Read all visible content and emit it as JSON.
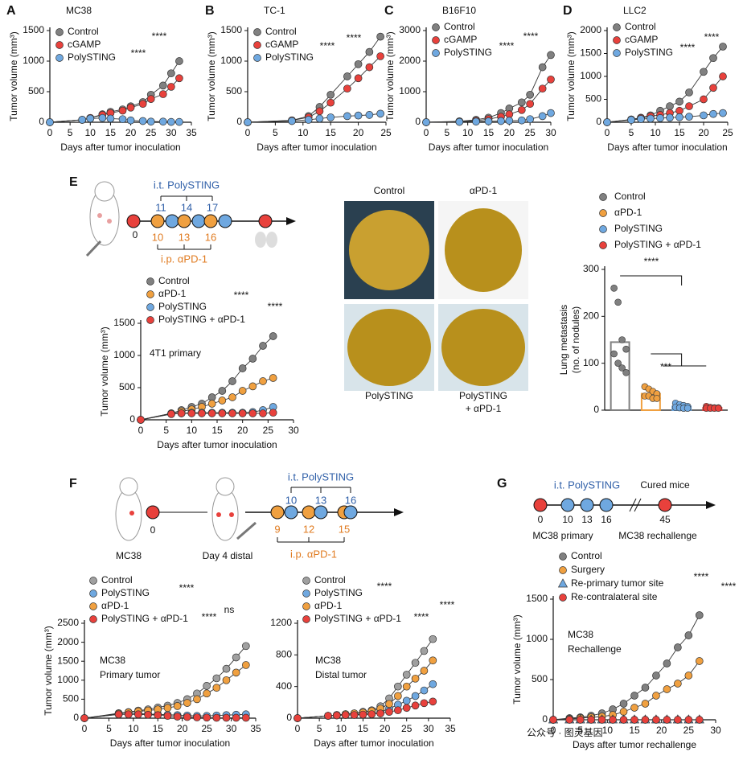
{
  "panels": [
    "A",
    "B",
    "C",
    "D",
    "E",
    "F",
    "G"
  ],
  "schemes": {
    "E": {
      "top_label": "i.t. PolySTING",
      "days_top": [
        11,
        14,
        17
      ],
      "start": "0",
      "days_bottom": [
        10,
        13,
        16
      ],
      "bottom_label": "i.p. αPD-1"
    },
    "F": {
      "top_label": "i.t. PolySTING",
      "days_top": [
        10,
        13,
        16
      ],
      "start": "0",
      "days_bottom": [
        9,
        12,
        15
      ],
      "bottom_label": "i.p. αPD-1",
      "mouse_labels": [
        "MC38",
        "Day 4 distal"
      ]
    },
    "G": {
      "top_label": "i.t. PolySTING",
      "right_label": "Cured mice",
      "days": [
        0,
        10,
        13,
        16,
        45
      ],
      "bottom_labels": [
        "MC38 primary",
        "MC38 rechallenge"
      ]
    }
  },
  "photos": {
    "labels": [
      "Control",
      "αPD-1",
      "PolySTING",
      "PolySTING",
      "+ αPD-1"
    ]
  },
  "watermark": "公众号 · 图灵基因",
  "chart_data": [
    {
      "type": "line",
      "title": "MC38",
      "xlabel": "Days after tumor inoculation",
      "ylabel": "Tumor volume (mm³)",
      "x": [
        0,
        8,
        10,
        13,
        15,
        18,
        20,
        23,
        25,
        28,
        30,
        32
      ],
      "xlim": [
        0,
        35
      ],
      "xticks": [
        0,
        5,
        10,
        15,
        20,
        25,
        30,
        35
      ],
      "ylim": [
        0,
        1500
      ],
      "yticks": [
        0,
        500,
        1000,
        1500
      ],
      "series": [
        {
          "name": "Control",
          "color": "#808080",
          "values": [
            0,
            40,
            70,
            130,
            170,
            210,
            260,
            330,
            450,
            600,
            800,
            1000
          ]
        },
        {
          "name": "cGAMP",
          "color": "#e8413c",
          "values": [
            0,
            40,
            70,
            120,
            150,
            190,
            240,
            300,
            380,
            460,
            580,
            720
          ]
        },
        {
          "name": "PolySTING",
          "color": "#6fa8e0",
          "values": [
            0,
            40,
            60,
            70,
            60,
            50,
            30,
            20,
            10,
            10,
            5,
            5
          ]
        }
      ],
      "annotations": [
        "****",
        "****"
      ]
    },
    {
      "type": "line",
      "title": "TC-1",
      "xlabel": "Days after tumor inoculation",
      "ylabel": "Tumor volume (mm³)",
      "x": [
        0,
        8,
        11,
        13,
        15,
        18,
        20,
        22,
        24
      ],
      "xlim": [
        0,
        25
      ],
      "xticks": [
        0,
        5,
        10,
        15,
        20,
        25
      ],
      "ylim": [
        0,
        1500
      ],
      "yticks": [
        0,
        500,
        1000,
        1500
      ],
      "series": [
        {
          "name": "Control",
          "color": "#808080",
          "values": [
            0,
            30,
            100,
            250,
            450,
            750,
            950,
            1150,
            1400
          ]
        },
        {
          "name": "cGAMP",
          "color": "#e8413c",
          "values": [
            0,
            30,
            80,
            180,
            320,
            550,
            720,
            900,
            1080
          ]
        },
        {
          "name": "PolySTING",
          "color": "#6fa8e0",
          "values": [
            0,
            20,
            40,
            60,
            80,
            100,
            110,
            120,
            140
          ]
        }
      ],
      "annotations": [
        "****",
        "****"
      ]
    },
    {
      "type": "line",
      "title": "B16F10",
      "xlabel": "Days after tumor inoculation",
      "ylabel": "Tumor volume (mm³)",
      "x": [
        0,
        8,
        12,
        15,
        18,
        20,
        23,
        25,
        28,
        30
      ],
      "xlim": [
        0,
        30
      ],
      "xticks": [
        0,
        5,
        10,
        15,
        20,
        25,
        30
      ],
      "ylim": [
        0,
        3000
      ],
      "yticks": [
        0,
        1000,
        2000,
        3000
      ],
      "series": [
        {
          "name": "Control",
          "color": "#808080",
          "values": [
            0,
            30,
            80,
            150,
            300,
            450,
            650,
            900,
            1800,
            2200
          ]
        },
        {
          "name": "cGAMP",
          "color": "#e8413c",
          "values": [
            0,
            20,
            50,
            100,
            180,
            260,
            400,
            600,
            1100,
            1400
          ]
        },
        {
          "name": "PolySTING",
          "color": "#6fa8e0",
          "values": [
            0,
            10,
            20,
            30,
            40,
            50,
            60,
            100,
            200,
            300
          ]
        }
      ],
      "annotations": [
        "****",
        "****"
      ]
    },
    {
      "type": "line",
      "title": "LLC2",
      "xlabel": "Days after tumor inoculation",
      "ylabel": "Tumor volume (mm³)",
      "x": [
        0,
        5,
        7,
        9,
        11,
        13,
        15,
        17,
        20,
        22,
        24
      ],
      "xlim": [
        0,
        25
      ],
      "xticks": [
        0,
        5,
        10,
        15,
        20,
        25
      ],
      "ylim": [
        0,
        2000
      ],
      "yticks": [
        0,
        500,
        1000,
        1500,
        2000
      ],
      "series": [
        {
          "name": "Control",
          "color": "#808080",
          "values": [
            0,
            60,
            100,
            150,
            250,
            350,
            450,
            650,
            1100,
            1400,
            1650
          ]
        },
        {
          "name": "cGAMP",
          "color": "#e8413c",
          "values": [
            0,
            60,
            90,
            130,
            160,
            200,
            250,
            350,
            500,
            750,
            1000
          ]
        },
        {
          "name": "PolySTING",
          "color": "#6fa8e0",
          "values": [
            0,
            50,
            70,
            80,
            90,
            100,
            110,
            120,
            150,
            180,
            200
          ]
        }
      ],
      "annotations": [
        "****",
        "****"
      ]
    },
    {
      "type": "line",
      "xlabel": "Days after tumor inoculation",
      "ylabel": "Tumor volume (mm³)",
      "labels": [
        "4T1 primary"
      ],
      "x": [
        0,
        6,
        8,
        10,
        12,
        14,
        16,
        18,
        20,
        22,
        24,
        26
      ],
      "xlim": [
        0,
        30
      ],
      "xticks": [
        0,
        5,
        10,
        15,
        20,
        25,
        30
      ],
      "ylim": [
        0,
        1500
      ],
      "yticks": [
        0,
        500,
        1000,
        1500
      ],
      "series": [
        {
          "name": "Control",
          "color": "#808080",
          "values": [
            0,
            100,
            150,
            200,
            250,
            350,
            450,
            600,
            800,
            950,
            1150,
            1300
          ]
        },
        {
          "name": "αPD-1",
          "color": "#f0a040",
          "values": [
            0,
            100,
            130,
            160,
            200,
            250,
            300,
            350,
            450,
            520,
            600,
            650
          ]
        },
        {
          "name": "PolySTING",
          "color": "#6fa8e0",
          "values": [
            0,
            90,
            100,
            110,
            110,
            110,
            110,
            110,
            110,
            120,
            150,
            200
          ]
        },
        {
          "name": "PolySTING + αPD-1",
          "color": "#e8413c",
          "values": [
            0,
            90,
            100,
            100,
            100,
            100,
            100,
            100,
            100,
            100,
            100,
            110
          ]
        }
      ],
      "annotations": [
        "****",
        "****"
      ]
    },
    {
      "type": "dotbar",
      "ylabel": [
        "Lung metastasis",
        "(no. of nodules)"
      ],
      "categories": [
        "Control",
        "αPD-1",
        "PolySTING",
        "PolySTING + αPD-1"
      ],
      "colors": [
        "#808080",
        "#f0a040",
        "#6fa8e0",
        "#e8413c"
      ],
      "values": [
        145,
        35,
        8,
        5
      ],
      "points": [
        [
          260,
          230,
          150,
          130,
          120,
          100,
          90,
          80
        ],
        [
          50,
          45,
          40,
          35,
          30,
          30,
          25,
          25
        ],
        [
          15,
          12,
          10,
          8,
          6,
          5,
          4,
          4
        ],
        [
          8,
          6,
          5,
          5,
          4,
          4,
          4,
          4
        ]
      ],
      "ylim": [
        0,
        300
      ],
      "yticks": [
        0,
        100,
        200,
        300
      ],
      "annotations": [
        "****",
        "***"
      ]
    },
    {
      "type": "line",
      "xlabel": "Days after tumor inoculation",
      "ylabel": "Tumor volume (mm³)",
      "labels": [
        "MC38",
        "Primary tumor"
      ],
      "x": [
        0,
        7,
        9,
        11,
        13,
        15,
        17,
        19,
        21,
        23,
        25,
        27,
        29,
        31,
        33
      ],
      "xlim": [
        0,
        35
      ],
      "xticks": [
        0,
        5,
        10,
        15,
        20,
        25,
        30,
        35
      ],
      "ylim": [
        0,
        2500
      ],
      "yticks": [
        0,
        500,
        1000,
        1500,
        2000,
        2500
      ],
      "series": [
        {
          "name": "Control",
          "color": "#a0a0a0",
          "values": [
            0,
            130,
            160,
            200,
            230,
            280,
            330,
            400,
            500,
            650,
            850,
            1050,
            1300,
            1600,
            1900
          ]
        },
        {
          "name": "PolySTING",
          "color": "#6fa8e0",
          "values": [
            0,
            100,
            110,
            120,
            110,
            100,
            90,
            80,
            70,
            60,
            60,
            70,
            80,
            90,
            100
          ]
        },
        {
          "name": "αPD-1",
          "color": "#f0a040",
          "values": [
            0,
            120,
            150,
            180,
            200,
            230,
            270,
            320,
            400,
            500,
            650,
            800,
            1000,
            1200,
            1400
          ]
        },
        {
          "name": "PolySTING + αPD-1",
          "color": "#e8413c",
          "values": [
            0,
            100,
            100,
            100,
            90,
            80,
            60,
            40,
            30,
            20,
            15,
            10,
            10,
            10,
            10
          ]
        }
      ],
      "annotations": [
        "****",
        "****",
        "ns"
      ]
    },
    {
      "type": "line",
      "xlabel": "Days after tumor inoculation",
      "labels": [
        "MC38",
        "Distal tumor"
      ],
      "x": [
        0,
        7,
        9,
        11,
        13,
        15,
        17,
        19,
        21,
        23,
        25,
        27,
        29,
        31
      ],
      "xlim": [
        0,
        35
      ],
      "xticks": [
        0,
        5,
        10,
        15,
        20,
        25,
        30,
        35
      ],
      "ylim": [
        0,
        1200
      ],
      "yticks": [
        0,
        400,
        800,
        1200
      ],
      "series": [
        {
          "name": "Control",
          "color": "#a0a0a0",
          "values": [
            0,
            30,
            40,
            50,
            60,
            80,
            100,
            150,
            250,
            400,
            550,
            700,
            850,
            1000
          ]
        },
        {
          "name": "PolySTING",
          "color": "#6fa8e0",
          "values": [
            0,
            30,
            35,
            40,
            45,
            50,
            60,
            80,
            120,
            170,
            220,
            280,
            350,
            430
          ]
        },
        {
          "name": "αPD-1",
          "color": "#f0a040",
          "values": [
            0,
            30,
            40,
            50,
            60,
            70,
            90,
            120,
            180,
            280,
            400,
            500,
            600,
            730
          ]
        },
        {
          "name": "PolySTING + αPD-1",
          "color": "#e8413c",
          "values": [
            0,
            30,
            35,
            40,
            40,
            45,
            50,
            60,
            80,
            100,
            130,
            160,
            190,
            210
          ]
        }
      ],
      "annotations": [
        "****",
        "****",
        "****"
      ]
    },
    {
      "type": "line",
      "xlabel": "Days after tumor rechallenge",
      "ylabel": "Tumor volume (mm³)",
      "labels": [
        "MC38",
        "Rechallenge"
      ],
      "x": [
        0,
        3,
        5,
        7,
        9,
        11,
        13,
        15,
        17,
        19,
        21,
        23,
        25,
        27
      ],
      "xlim": [
        0,
        30
      ],
      "xticks": [
        0,
        5,
        10,
        15,
        20,
        25,
        30
      ],
      "ylim": [
        0,
        1500
      ],
      "yticks": [
        0,
        500,
        1000,
        1500
      ],
      "series": [
        {
          "name": "Control",
          "color": "#808080",
          "values": [
            0,
            20,
            30,
            50,
            80,
            130,
            200,
            300,
            400,
            550,
            700,
            900,
            1050,
            1300
          ]
        },
        {
          "name": "Surgery",
          "color": "#f0a040",
          "values": [
            0,
            10,
            20,
            30,
            40,
            60,
            100,
            150,
            200,
            300,
            380,
            450,
            550,
            730
          ]
        },
        {
          "name": "Re-primary tumor site",
          "color": "#6fa8e0",
          "marker": "triangle",
          "values": [
            0,
            0,
            0,
            0,
            0,
            0,
            0,
            0,
            0,
            0,
            0,
            0,
            0,
            0
          ]
        },
        {
          "name": "Re-contralateral site",
          "color": "#e8413c",
          "values": [
            0,
            0,
            0,
            0,
            0,
            0,
            0,
            0,
            0,
            0,
            0,
            0,
            0,
            0
          ]
        }
      ],
      "annotations": [
        "****",
        "****"
      ]
    }
  ]
}
